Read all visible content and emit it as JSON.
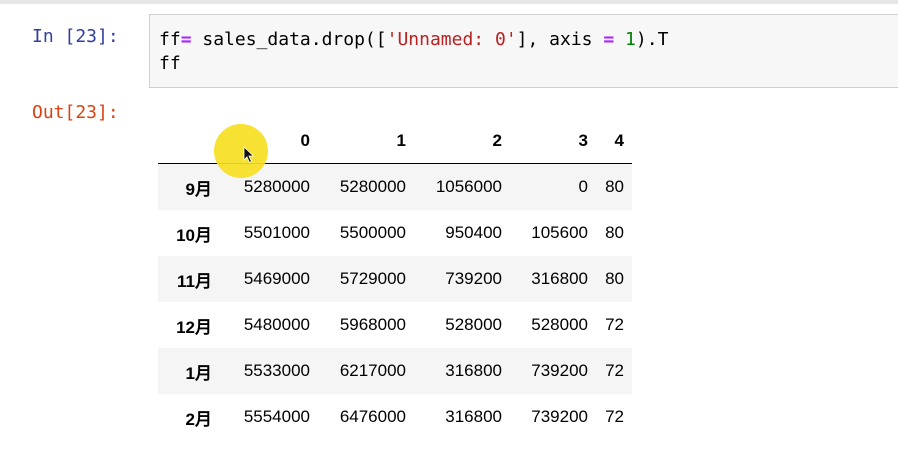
{
  "input": {
    "prompt": "In [23]:",
    "code": {
      "line1": {
        "t1": "ff",
        "t2": "=",
        "t3": " sales_data.drop([",
        "t4": "'Unnamed: 0'",
        "t5": "], axis ",
        "t6": "=",
        "t7": " ",
        "t8": "1",
        "t9": ").T"
      },
      "line2": "ff"
    }
  },
  "output": {
    "prompt": "Out[23]:",
    "table": {
      "columns": [
        "0",
        "1",
        "2",
        "3",
        "4"
      ],
      "rows": [
        {
          "index": "9月",
          "values": [
            "5280000",
            "5280000",
            "1056000",
            "0",
            "80"
          ]
        },
        {
          "index": "10月",
          "values": [
            "5501000",
            "5500000",
            "950400",
            "105600",
            "80"
          ]
        },
        {
          "index": "11月",
          "values": [
            "5469000",
            "5729000",
            "739200",
            "316800",
            "80"
          ]
        },
        {
          "index": "12月",
          "values": [
            "5480000",
            "5968000",
            "528000",
            "528000",
            "72"
          ]
        },
        {
          "index": "1月",
          "values": [
            "5533000",
            "6217000",
            "316800",
            "739200",
            "72"
          ]
        },
        {
          "index": "2月",
          "values": [
            "5554000",
            "6476000",
            "316800",
            "739200",
            "72"
          ]
        }
      ]
    }
  },
  "colors": {
    "in_prompt": "#303f9f",
    "out_prompt": "#d84315",
    "operator": "#aa22ff",
    "string": "#ba2121",
    "number": "#008000",
    "cursor_highlight": "#f6de22"
  }
}
